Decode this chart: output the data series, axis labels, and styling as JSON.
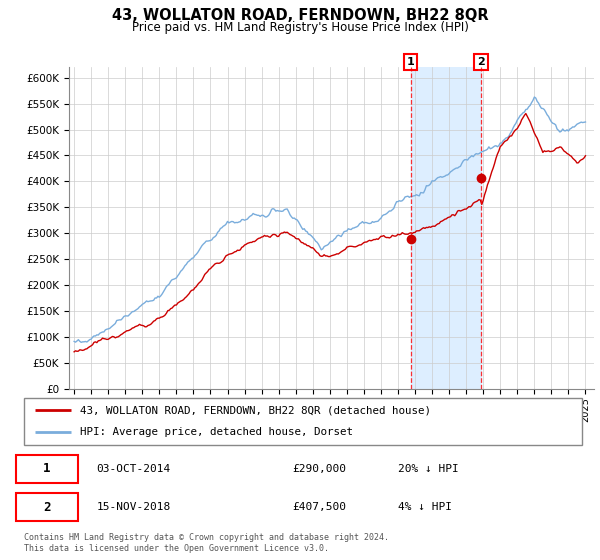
{
  "title": "43, WOLLATON ROAD, FERNDOWN, BH22 8QR",
  "subtitle": "Price paid vs. HM Land Registry's House Price Index (HPI)",
  "ylim": [
    0,
    620000
  ],
  "yticks": [
    0,
    50000,
    100000,
    150000,
    200000,
    250000,
    300000,
    350000,
    400000,
    450000,
    500000,
    550000,
    600000
  ],
  "ytick_labels": [
    "£0",
    "£50K",
    "£100K",
    "£150K",
    "£200K",
    "£250K",
    "£300K",
    "£350K",
    "£400K",
    "£450K",
    "£500K",
    "£550K",
    "£600K"
  ],
  "sale1_date": 2014.75,
  "sale1_price": 290000,
  "sale2_date": 2018.875,
  "sale2_price": 407500,
  "hpi_color": "#7aaddc",
  "price_color": "#cc0000",
  "shade_color": "#ddeeff",
  "legend_label_price": "43, WOLLATON ROAD, FERNDOWN, BH22 8QR (detached house)",
  "legend_label_hpi": "HPI: Average price, detached house, Dorset",
  "table_row1_num": "1",
  "table_row1_date": "03-OCT-2014",
  "table_row1_price": "£290,000",
  "table_row1_hpi": "20% ↓ HPI",
  "table_row2_num": "2",
  "table_row2_date": "15-NOV-2018",
  "table_row2_price": "£407,500",
  "table_row2_hpi": "4% ↓ HPI",
  "footer": "Contains HM Land Registry data © Crown copyright and database right 2024.\nThis data is licensed under the Open Government Licence v3.0."
}
